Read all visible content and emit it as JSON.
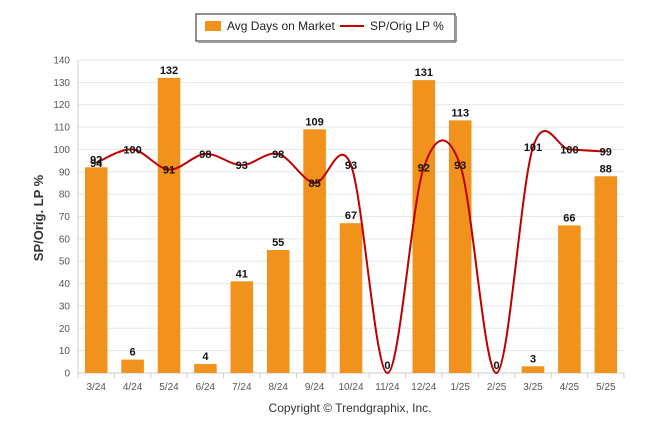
{
  "chart_data": {
    "type": "bar",
    "categories": [
      "3/24",
      "4/24",
      "5/24",
      "6/24",
      "7/24",
      "8/24",
      "9/24",
      "10/24",
      "11/24",
      "12/24",
      "1/25",
      "2/25",
      "3/25",
      "4/25",
      "5/25"
    ],
    "series": [
      {
        "name": "Avg Days on Market",
        "type": "bar",
        "color": "#f0921b",
        "values": [
          92,
          6,
          132,
          4,
          41,
          55,
          109,
          67,
          0,
          131,
          113,
          0,
          3,
          66,
          88
        ]
      },
      {
        "name": "SP/Orig LP %",
        "type": "line",
        "color": "#c00000",
        "values": [
          94,
          100,
          91,
          98,
          93,
          98,
          85,
          93,
          0,
          92,
          93,
          0,
          101,
          100,
          99
        ]
      }
    ],
    "ylabel": "SP/Orig. LP %",
    "ylim": [
      0,
      140
    ],
    "yticks": [
      0,
      10,
      20,
      30,
      40,
      50,
      60,
      70,
      80,
      90,
      100,
      110,
      120,
      130,
      140
    ],
    "grid": true,
    "legend_position": "top-center"
  },
  "footer": {
    "copyright": "Copyright © Trendgraphix, Inc."
  }
}
